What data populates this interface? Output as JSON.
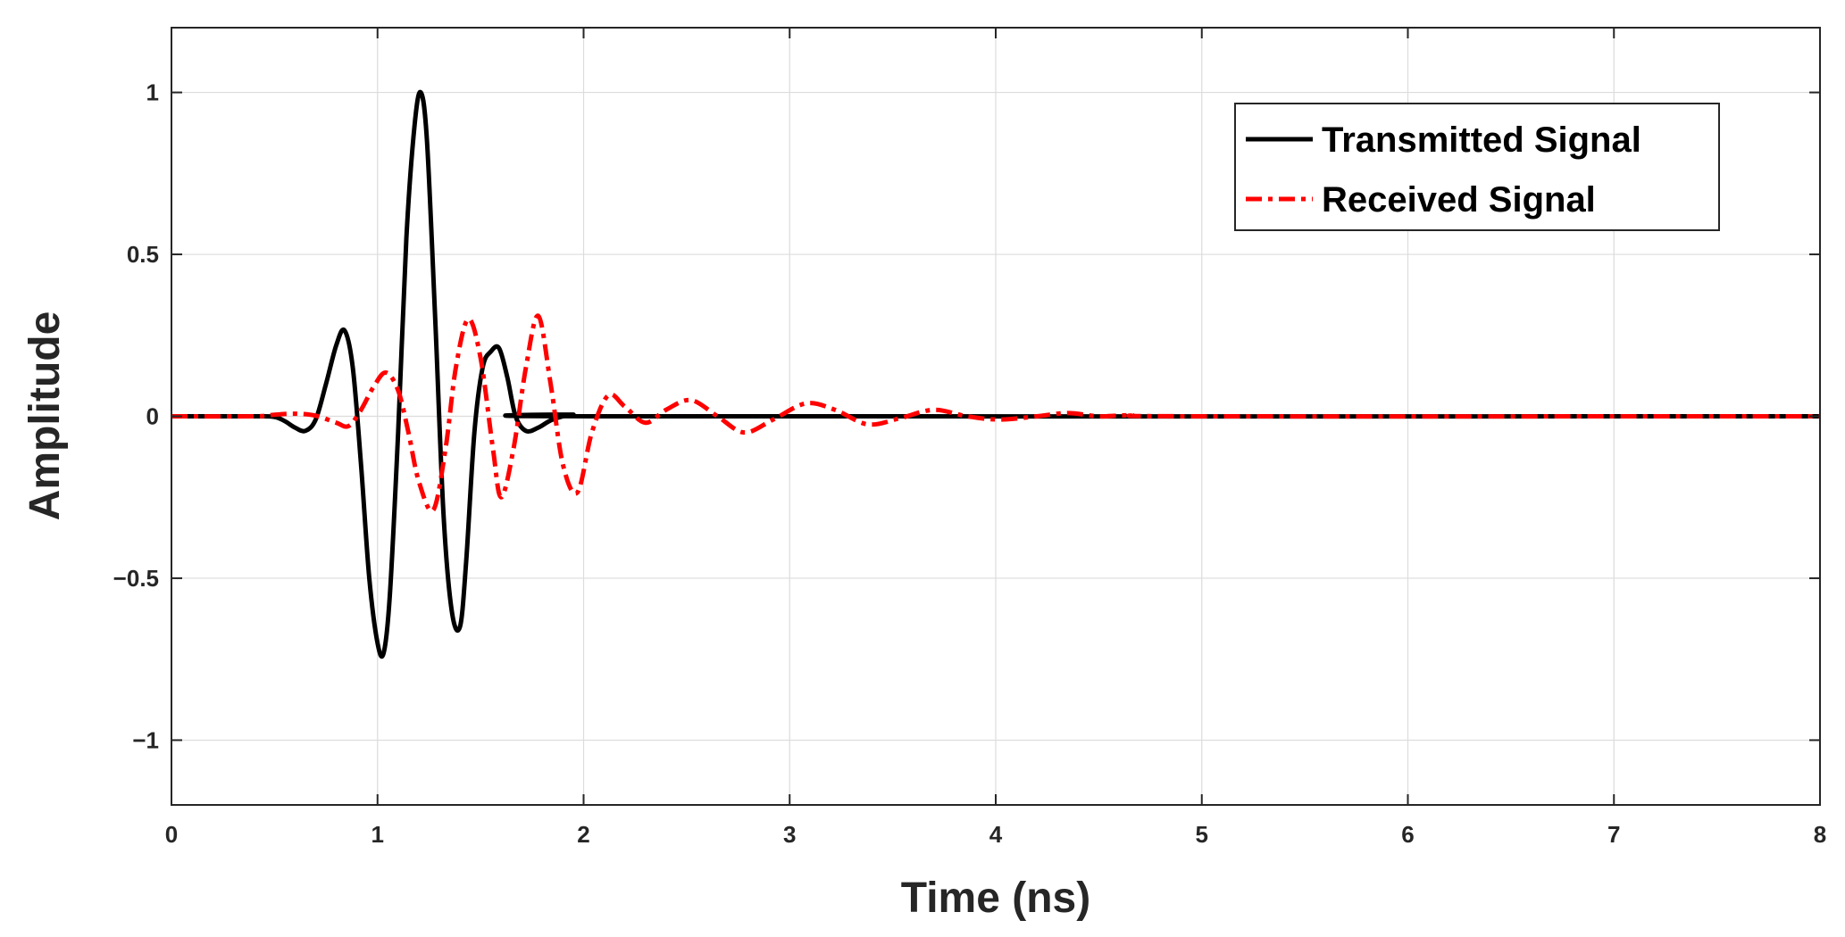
{
  "chart_data": {
    "type": "line",
    "title": "",
    "xlabel": "Time (ns)",
    "ylabel": "Amplitude",
    "xlim": [
      0,
      8
    ],
    "ylim": [
      -1.2,
      1.2
    ],
    "xticks": [
      0,
      1,
      2,
      3,
      4,
      5,
      6,
      7,
      8
    ],
    "xtick_labels": [
      "0",
      "1",
      "2",
      "3",
      "4",
      "5",
      "6",
      "7",
      "8"
    ],
    "yticks": [
      -1,
      -0.5,
      0,
      0.5,
      1
    ],
    "ytick_labels": [
      "−1",
      "−0.5",
      "0",
      "0.5",
      "1"
    ],
    "grid": true,
    "legend_position": "top-right",
    "series": [
      {
        "name": "Transmitted Signal",
        "color": "#000000",
        "style": "solid",
        "x": [
          0,
          0.4,
          0.5,
          0.55,
          0.6,
          0.65,
          0.7,
          0.75,
          0.8,
          0.84,
          0.88,
          0.92,
          0.96,
          1.0,
          1.03,
          1.06,
          1.1,
          1.14,
          1.18,
          1.21,
          1.24,
          1.28,
          1.32,
          1.36,
          1.4,
          1.43,
          1.47,
          1.51,
          1.55,
          1.59,
          1.63,
          1.67,
          1.72,
          1.78,
          1.85,
          1.95,
          2.1,
          8
        ],
        "y": [
          0,
          0,
          -0.002,
          -0.015,
          -0.035,
          -0.045,
          -0.01,
          0.1,
          0.22,
          0.265,
          0.15,
          -0.15,
          -0.5,
          -0.7,
          -0.73,
          -0.55,
          -0.05,
          0.55,
          0.9,
          1.0,
          0.85,
          0.3,
          -0.3,
          -0.6,
          -0.65,
          -0.45,
          -0.05,
          0.15,
          0.2,
          0.21,
          0.12,
          0.0,
          -0.045,
          -0.035,
          -0.01,
          0.005,
          0,
          0
        ]
      },
      {
        "name": "Received Signal",
        "color": "#ff0000",
        "style": "dash-dot",
        "x": [
          0,
          0.4,
          0.5,
          0.6,
          0.7,
          0.8,
          0.86,
          0.92,
          0.98,
          1.04,
          1.1,
          1.15,
          1.2,
          1.27,
          1.33,
          1.38,
          1.44,
          1.5,
          1.56,
          1.6,
          1.66,
          1.72,
          1.78,
          1.84,
          1.9,
          1.97,
          2.04,
          2.12,
          2.2,
          2.3,
          2.4,
          2.52,
          2.65,
          2.78,
          2.92,
          3.08,
          3.22,
          3.38,
          3.54,
          3.7,
          3.86,
          4.02,
          4.2,
          4.35,
          4.5,
          4.65,
          5.0,
          8
        ],
        "y": [
          0,
          0,
          0.005,
          0.008,
          0.002,
          -0.02,
          -0.03,
          0.02,
          0.09,
          0.135,
          0.08,
          -0.05,
          -0.2,
          -0.29,
          -0.1,
          0.15,
          0.3,
          0.18,
          -0.1,
          -0.25,
          -0.1,
          0.15,
          0.31,
          0.1,
          -0.15,
          -0.235,
          -0.05,
          0.065,
          0.03,
          -0.02,
          0.02,
          0.05,
          0.0,
          -0.05,
          -0.01,
          0.04,
          0.02,
          -0.025,
          -0.005,
          0.02,
          0.0,
          -0.01,
          0.0,
          0.01,
          0.0,
          0.003,
          0,
          0
        ]
      }
    ]
  }
}
